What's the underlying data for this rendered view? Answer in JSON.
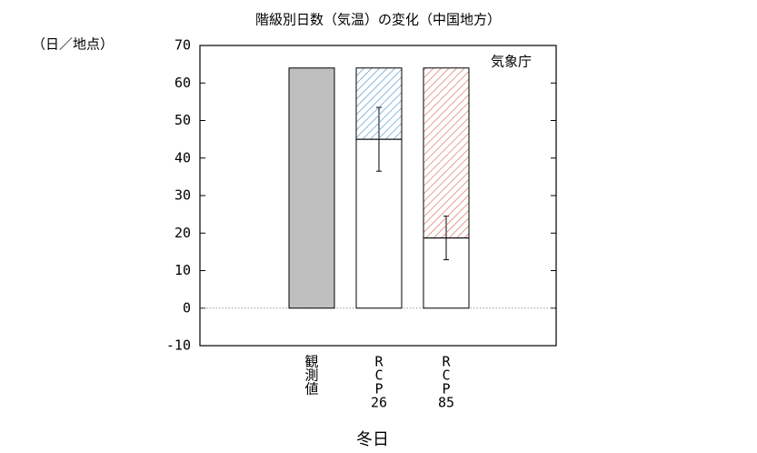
{
  "chart_data": {
    "type": "bar",
    "title": "階級別日数（気温）の変化（中国地方）",
    "y_label": "（日／地点）",
    "x_label": "冬日",
    "annotation": "気象庁",
    "categories": [
      [
        "観",
        "測",
        "値"
      ],
      [
        "R",
        "C",
        "P",
        "26"
      ],
      [
        "R",
        "C",
        "P",
        "85"
      ]
    ],
    "series": [
      {
        "color": "#bfbfbf",
        "values": [
          64,
          null,
          null
        ]
      },
      {
        "color": "#ffffff",
        "values": [
          null,
          45,
          18.7
        ],
        "errors": [
          null,
          8.5,
          5.8
        ]
      },
      {
        "colors": [
          null,
          "#4a90c0",
          "#d0604e"
        ],
        "hatched": true,
        "values": [
          null,
          19,
          45.3
        ]
      }
    ],
    "ylim": [
      -10,
      70
    ],
    "yticks": [
      -10,
      0,
      10,
      20,
      30,
      40,
      50,
      60,
      70
    ],
    "zero_line": true
  }
}
